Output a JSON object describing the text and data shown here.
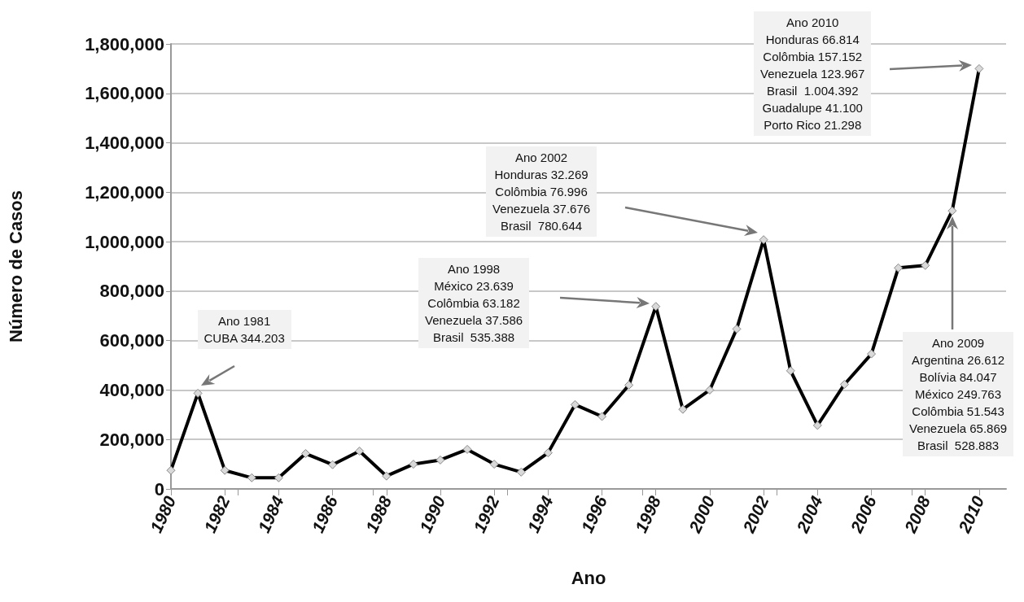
{
  "chart_data": {
    "type": "line",
    "xlabel": "Ano",
    "ylabel": "Número de Casos",
    "x": [
      1980,
      1981,
      1982,
      1983,
      1984,
      1985,
      1986,
      1987,
      1988,
      1989,
      1990,
      1991,
      1992,
      1993,
      1994,
      1995,
      1996,
      1997,
      1998,
      1999,
      2000,
      2001,
      2002,
      2003,
      2004,
      2005,
      2006,
      2007,
      2008,
      2009,
      2010
    ],
    "series": [
      {
        "color": "#000000",
        "values": [
          75000,
          387000,
          75000,
          45000,
          45000,
          143000,
          98000,
          153000,
          52000,
          100000,
          117000,
          160000,
          100000,
          68000,
          146000,
          341000,
          293000,
          420000,
          738000,
          322000,
          400000,
          647000,
          1008000,
          478000,
          257000,
          423000,
          546000,
          894000,
          904000,
          1125000,
          1700000
        ]
      }
    ],
    "xlim": [
      1980,
      2011
    ],
    "xticks": [
      1980,
      1982,
      1984,
      1986,
      1988,
      1990,
      1992,
      1994,
      1996,
      1998,
      2000,
      2002,
      2004,
      2006,
      2008,
      2010
    ],
    "ylim": [
      0,
      1800000
    ],
    "yticks": [
      {
        "value": 0,
        "label": "0"
      },
      {
        "value": 200000,
        "label": "200,000"
      },
      {
        "value": 400000,
        "label": "400,000"
      },
      {
        "value": 600000,
        "label": "600,000"
      },
      {
        "value": 800000,
        "label": "800,000"
      },
      {
        "value": 1000000,
        "label": "1,000,000"
      },
      {
        "value": 1200000,
        "label": "1,200,000"
      },
      {
        "value": 1400000,
        "label": "1,400,000"
      },
      {
        "value": 1600000,
        "label": "1,600,000"
      },
      {
        "value": 1800000,
        "label": "1,800,000"
      }
    ],
    "grid": "y",
    "marker": "diamond",
    "line_style": "solid",
    "annotations": [
      "Ano 1981\nCUBA 344.203",
      "Ano 1998\nMéxico 23.639\nColômbia 63.182\nVenezuela 37.586\nBrasil  535.388",
      "Ano 2002\nHonduras 32.269\nColômbia 76.996\nVenezuela 37.676\nBrasil  780.644",
      "Ano 2010\nHonduras 66.814\nColômbia 157.152\nVenezuela 123.967\nBrasil  1.004.392\nGuadalupe 41.100\nPorto Rico 21.298",
      "Ano 2009\nArgentina 26.612\nBolívia 84.047\nMéxico 249.763\nColômbia 51.543\nVenezuela 65.869\nBrasil  528.883"
    ]
  }
}
